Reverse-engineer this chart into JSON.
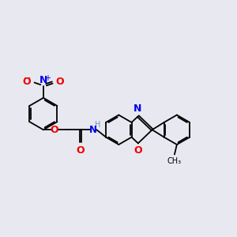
{
  "bg_color": "#e8e8f0",
  "bond_color": "#000000",
  "n_color": "#0000ee",
  "o_color": "#ee0000",
  "h_color": "#6699aa",
  "lw": 1.3,
  "dbo": 0.055,
  "fig_size": [
    3.0,
    3.0
  ],
  "dpi": 100,
  "xlim": [
    0,
    10
  ],
  "ylim": [
    0,
    10
  ]
}
